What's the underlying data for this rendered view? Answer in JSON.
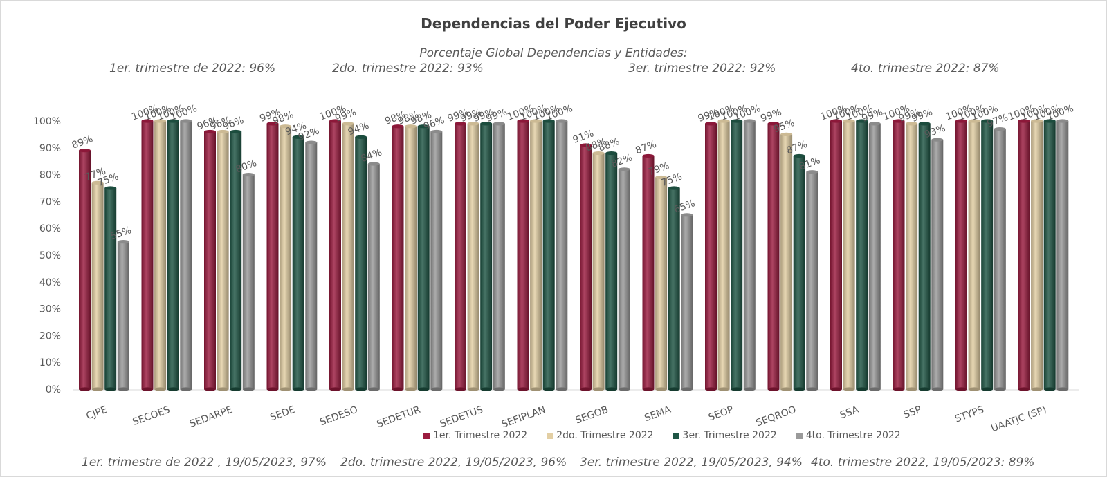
{
  "title": "Dependencias del Poder Ejecutivo",
  "subtitle": "Porcentaje Global  Dependencias y Entidades:",
  "quarter_notes": [
    "1er. trimestre de 2022: 96%",
    "2do. trimestre 2022: 93%",
    "3er. trimestre 2022: 92%",
    "4to. trimestre 2022: 87%"
  ],
  "footer_notes": [
    "1er. trimestre de 2022 , 19/05/2023, 97%",
    "2do. trimestre 2022, 19/05/2023, 96%",
    "3er. trimestre 2022, 19/05/2023, 94%",
    "4to. trimestre 2022, 19/05/2023: 89%"
  ],
  "colors": {
    "s1": "#9b1b3f",
    "s2": "#e3cfa4",
    "s3": "#1f5645",
    "s4": "#9a9a9a"
  },
  "chart_data": {
    "type": "bar",
    "categories": [
      "CJPE",
      "SECOES",
      "SEDARPE",
      "SEDE",
      "SEDESO",
      "SEDETUR",
      "SEDETUS",
      "SEFIPLAN",
      "SEGOB",
      "SEMA",
      "SEOP",
      "SEQROO",
      "SSA",
      "SSP",
      "STYPS",
      "UAATJC (SP)"
    ],
    "series": [
      {
        "name": "1er. Trimestre 2022",
        "values": [
          89,
          100,
          96,
          99,
          100,
          98,
          99,
          100,
          91,
          87,
          99,
          99,
          100,
          100,
          100,
          100
        ]
      },
      {
        "name": "2do. Trimestre 2022",
        "values": [
          77,
          100,
          96,
          98,
          99,
          98,
          99,
          100,
          88,
          79,
          100,
          95,
          100,
          99,
          100,
          100
        ]
      },
      {
        "name": "3er. Trimestre 2022",
        "values": [
          75,
          100,
          96,
          94,
          94,
          98,
          99,
          100,
          88,
          75,
          100,
          87,
          100,
          99,
          100,
          100
        ]
      },
      {
        "name": "4to. Trimestre 2022",
        "values": [
          55,
          100,
          80,
          92,
          84,
          96,
          99,
          100,
          82,
          65,
          100,
          81,
          99,
          93,
          97,
          100
        ]
      }
    ],
    "ylim": [
      0,
      100
    ],
    "yticks": [
      "0%",
      "10%",
      "20%",
      "30%",
      "40%",
      "50%",
      "60%",
      "70%",
      "80%",
      "90%",
      "100%"
    ],
    "value_suffix": "%",
    "legend_position": "bottom",
    "grid": false
  }
}
